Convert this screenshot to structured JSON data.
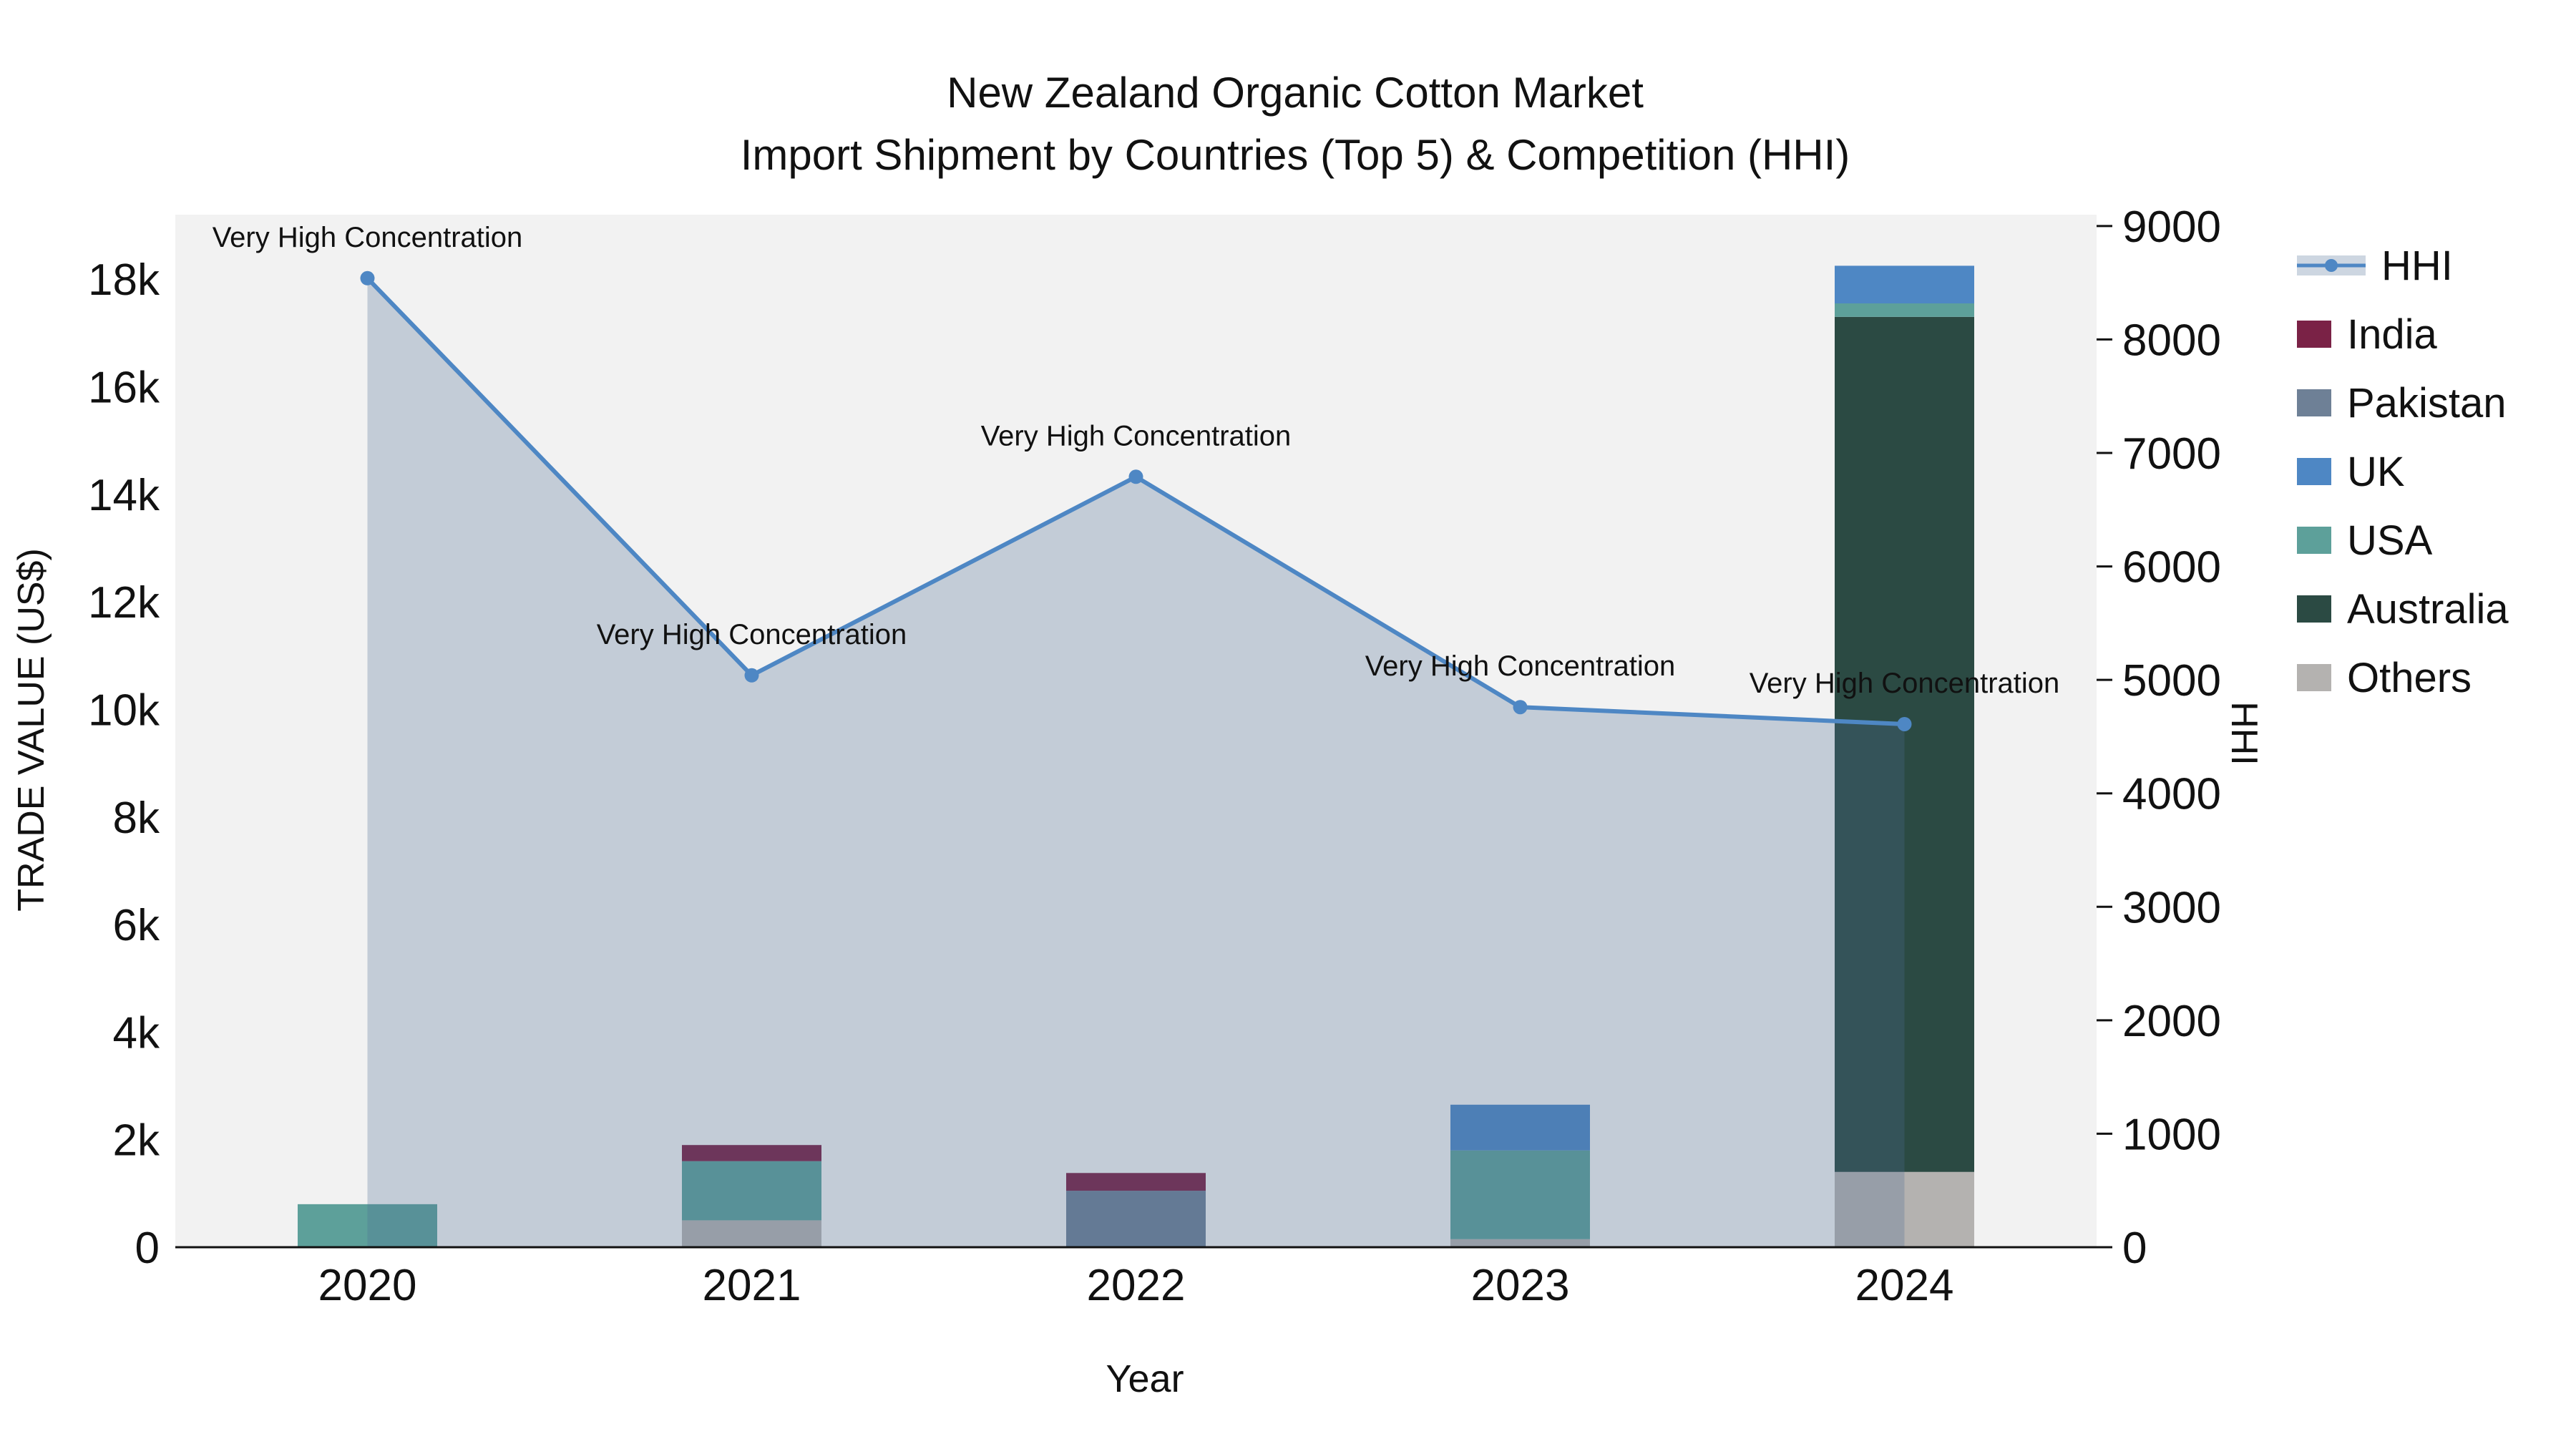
{
  "chart_data": {
    "type": "bar",
    "combo": "stacked-bars-with-line-area-overlay",
    "title": "New Zealand Organic Cotton Market",
    "subtitle": "Import Shipment by Countries (Top 5) & Competition (HHI)",
    "xlabel": "Year",
    "ylabel_left": "TRADE VALUE (US$)",
    "ylabel_right": "HHI",
    "plot_bg": "#f2f2f2",
    "categories": [
      "2020",
      "2021",
      "2022",
      "2023",
      "2024"
    ],
    "left_axis": {
      "ticks": [
        "0",
        "2k",
        "4k",
        "6k",
        "8k",
        "10k",
        "12k",
        "14k",
        "16k",
        "18k"
      ],
      "tick_values": [
        0,
        2000,
        4000,
        6000,
        8000,
        10000,
        12000,
        14000,
        16000,
        18000
      ],
      "max": 19200
    },
    "right_axis": {
      "ticks": [
        "0",
        "1000",
        "2000",
        "3000",
        "4000",
        "5000",
        "6000",
        "7000",
        "8000",
        "9000"
      ],
      "tick_values": [
        0,
        1000,
        2000,
        3000,
        4000,
        5000,
        6000,
        7000,
        8000,
        9000
      ],
      "max": 9100
    },
    "bar_series": [
      {
        "name": "Others",
        "color": "#b4b2b0",
        "values": [
          0,
          500,
          0,
          150,
          1400
        ]
      },
      {
        "name": "Australia",
        "color": "#2b4a43",
        "values": [
          0,
          0,
          0,
          0,
          15900
        ]
      },
      {
        "name": "USA",
        "color": "#5da09a",
        "values": [
          800,
          1100,
          0,
          1650,
          250
        ]
      },
      {
        "name": "UK",
        "color": "#4e87c4",
        "values": [
          0,
          0,
          0,
          850,
          700
        ]
      },
      {
        "name": "Pakistan",
        "color": "#6e8096",
        "values": [
          0,
          0,
          1050,
          0,
          0
        ]
      },
      {
        "name": "India",
        "color": "#7a2246",
        "values": [
          0,
          300,
          330,
          0,
          0
        ]
      }
    ],
    "line_series": {
      "name": "HHI",
      "color": "#4e87c4",
      "fill": "rgba(74,107,148,0.28)",
      "values": [
        8540,
        5040,
        6790,
        4760,
        4610
      ]
    },
    "annotations": [
      "Very High Concentration",
      "Very High Concentration",
      "Very High Concentration",
      "Very High Concentration",
      "Very High Concentration"
    ],
    "legend": [
      {
        "label": "HHI",
        "type": "line",
        "color": "#4e87c4"
      },
      {
        "label": "India",
        "type": "square",
        "color": "#7a2246"
      },
      {
        "label": "Pakistan",
        "type": "square",
        "color": "#6e8096"
      },
      {
        "label": "UK",
        "type": "square",
        "color": "#4e87c4"
      },
      {
        "label": "USA",
        "type": "square",
        "color": "#5da09a"
      },
      {
        "label": "Australia",
        "type": "square",
        "color": "#2b4a43"
      },
      {
        "label": "Others",
        "type": "square",
        "color": "#b4b2b0"
      }
    ]
  }
}
